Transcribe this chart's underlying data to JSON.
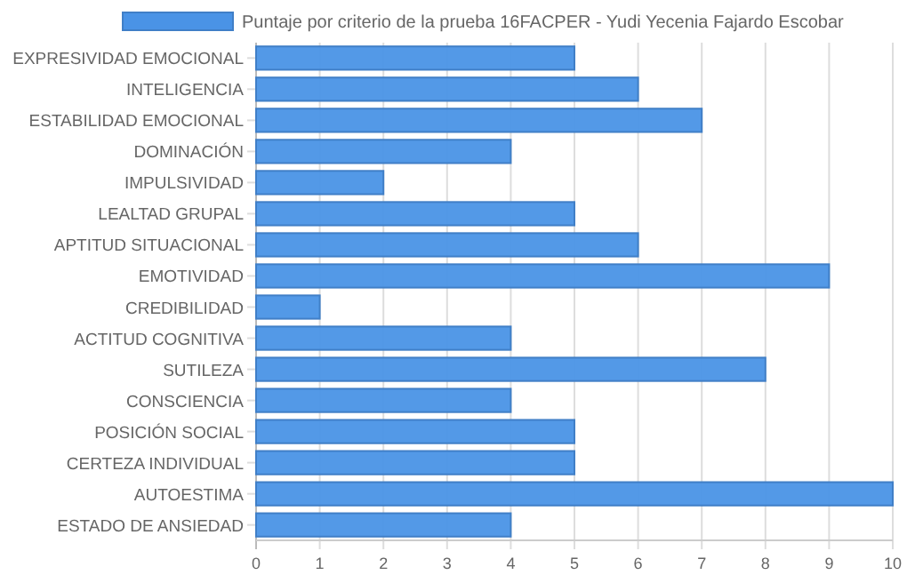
{
  "chart_data": {
    "type": "bar",
    "orientation": "horizontal",
    "categories": [
      "EXPRESIVIDAD EMOCIONAL",
      "INTELIGENCIA",
      "ESTABILIDAD EMOCIONAL",
      "DOMINACIÓN",
      "IMPULSIVIDAD",
      "LEALTAD GRUPAL",
      "APTITUD SITUACIONAL",
      "EMOTIVIDAD",
      "CREDIBILIDAD",
      "ACTITUD COGNITIVA",
      "SUTILEZA",
      "CONSCIENCIA",
      "POSICIÓN SOCIAL",
      "CERTEZA INDIVIDUAL",
      "AUTOESTIMA",
      "ESTADO DE ANSIEDAD"
    ],
    "series": [
      {
        "name": "Puntaje por criterio de la prueba 16FACPER - Yudi Yecenia Fajardo Escobar",
        "color": "#4a93e6",
        "values": [
          5,
          6,
          7,
          4,
          2,
          5,
          6,
          9,
          1,
          4,
          8,
          4,
          5,
          5,
          10,
          4
        ]
      }
    ],
    "xlim": [
      0,
      10
    ],
    "xticks": [
      0,
      1,
      2,
      3,
      4,
      5,
      6,
      7,
      8,
      9,
      10
    ],
    "grid": "x",
    "legend": "top"
  }
}
